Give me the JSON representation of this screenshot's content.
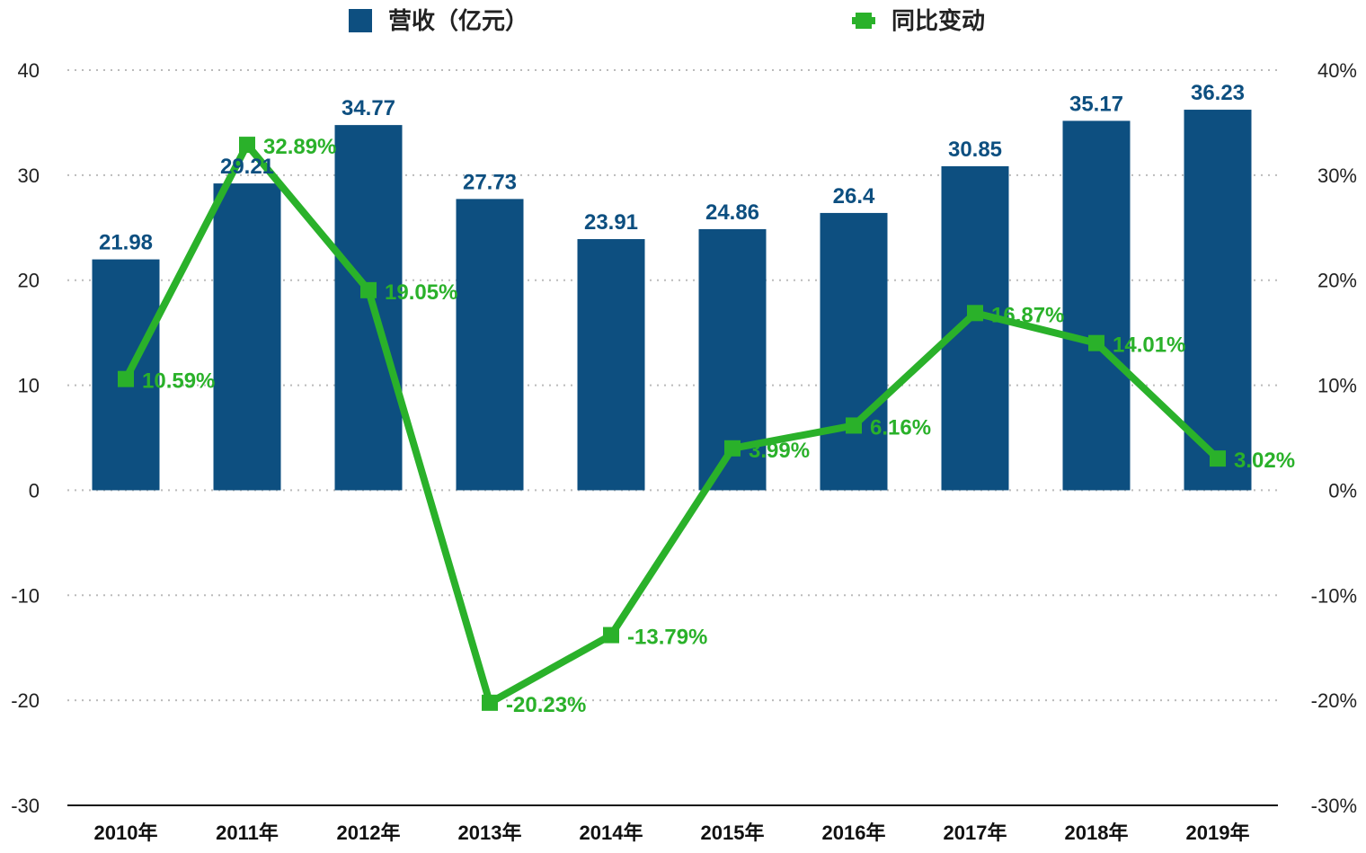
{
  "chart_data": {
    "type": "bar+line",
    "categories": [
      "2010年",
      "2011年",
      "2012年",
      "2013年",
      "2014年",
      "2015年",
      "2016年",
      "2017年",
      "2018年",
      "2019年"
    ],
    "series": [
      {
        "name": "营收（亿元）",
        "type": "bar",
        "axis": "left",
        "color": "#0d4f80",
        "values": [
          21.98,
          29.21,
          34.77,
          27.73,
          23.91,
          24.86,
          26.4,
          30.85,
          35.17,
          36.23
        ],
        "labels": [
          "21.98",
          "29.21",
          "34.77",
          "27.73",
          "23.91",
          "24.86",
          "26.4",
          "30.85",
          "35.17",
          "36.23"
        ]
      },
      {
        "name": "同比变动",
        "type": "line",
        "axis": "right",
        "color": "#2ab12a",
        "values": [
          10.59,
          32.89,
          19.05,
          -20.23,
          -13.79,
          3.99,
          6.16,
          16.87,
          14.01,
          3.02
        ],
        "labels": [
          "10.59%",
          "32.89%",
          "19.05%",
          "-20.23%",
          "-13.79%",
          "3.99%",
          "6.16%",
          "16.87%",
          "14.01%",
          "3.02%"
        ]
      }
    ],
    "left_axis": {
      "range": [
        -30,
        40
      ],
      "ticks": [
        "40",
        "30",
        "20",
        "10",
        "0",
        "-10",
        "-20",
        "-30"
      ]
    },
    "right_axis": {
      "range": [
        -30,
        40
      ],
      "unit": "%",
      "ticks": [
        "40%",
        "30%",
        "20%",
        "10%",
        "0%",
        "-10%",
        "-20%",
        "-30%"
      ]
    },
    "grid": "horizontal dotted",
    "legend": "top"
  }
}
